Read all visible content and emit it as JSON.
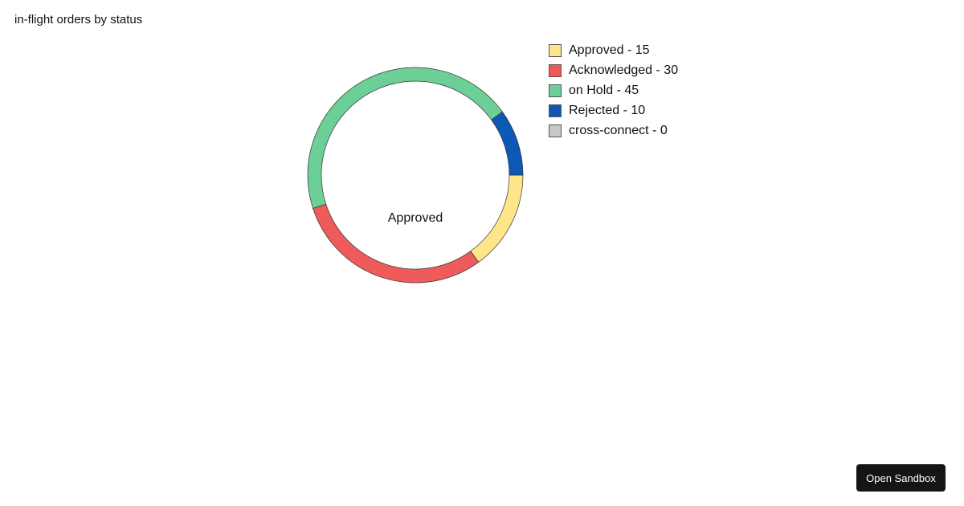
{
  "chart_data": {
    "type": "pie",
    "variant": "donut",
    "title": "in-flight orders by status",
    "center_label": "Approved",
    "series": [
      {
        "name": "Approved",
        "value": 15,
        "color": "#fde68a",
        "legend": "Approved - 15"
      },
      {
        "name": "Acknowledged",
        "value": 30,
        "color": "#ef5a5a",
        "legend": "Acknowledged - 30"
      },
      {
        "name": "on Hold",
        "value": 45,
        "color": "#6ccf97",
        "legend": "on Hold - 45"
      },
      {
        "name": "Rejected",
        "value": 10,
        "color": "#0d57b5",
        "legend": "Rejected - 10"
      },
      {
        "name": "cross-connect",
        "value": 0,
        "color": "#c8c8c8",
        "legend": "cross-connect - 0"
      }
    ],
    "legend_position": "right"
  },
  "button": {
    "label": "Open Sandbox"
  }
}
